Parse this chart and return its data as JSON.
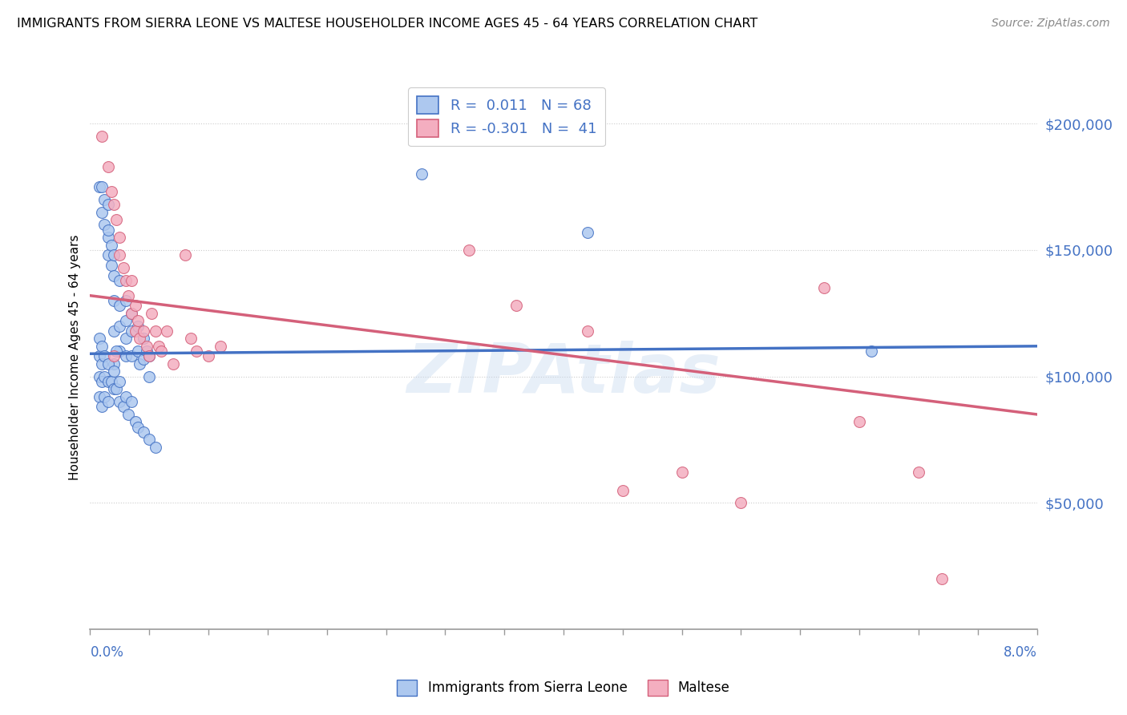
{
  "title": "IMMIGRANTS FROM SIERRA LEONE VS MALTESE HOUSEHOLDER INCOME AGES 45 - 64 YEARS CORRELATION CHART",
  "source": "Source: ZipAtlas.com",
  "ylabel": "Householder Income Ages 45 - 64 years",
  "xmin": 0.0,
  "xmax": 8.0,
  "ymin": 0,
  "ymax": 215000,
  "yticks": [
    50000,
    100000,
    150000,
    200000
  ],
  "ytick_labels": [
    "$50,000",
    "$100,000",
    "$150,000",
    "$200,000"
  ],
  "legend_entry1": "R =  0.011   N = 68",
  "legend_entry2": "R = -0.301   N =  41",
  "blue_color": "#adc8ef",
  "pink_color": "#f4aec0",
  "blue_line_color": "#4472c4",
  "pink_line_color": "#d4607a",
  "blue_line_y0": 109000,
  "blue_line_y1": 112000,
  "pink_line_y0": 132000,
  "pink_line_y1": 85000,
  "blue_scatter_x": [
    0.08,
    0.1,
    0.1,
    0.12,
    0.12,
    0.15,
    0.15,
    0.15,
    0.15,
    0.18,
    0.18,
    0.2,
    0.2,
    0.2,
    0.2,
    0.2,
    0.25,
    0.25,
    0.25,
    0.25,
    0.3,
    0.3,
    0.3,
    0.3,
    0.35,
    0.35,
    0.35,
    0.4,
    0.4,
    0.42,
    0.45,
    0.45,
    0.48,
    0.5,
    0.5,
    0.08,
    0.08,
    0.08,
    0.08,
    0.1,
    0.1,
    0.1,
    0.1,
    0.12,
    0.12,
    0.12,
    0.15,
    0.15,
    0.15,
    0.18,
    0.2,
    0.2,
    0.22,
    0.25,
    0.25,
    0.28,
    0.3,
    0.32,
    0.35,
    0.38,
    0.4,
    0.45,
    0.5,
    0.55,
    2.8,
    4.2,
    6.6,
    0.22
  ],
  "blue_scatter_y": [
    175000,
    165000,
    175000,
    160000,
    170000,
    155000,
    168000,
    158000,
    148000,
    152000,
    144000,
    140000,
    148000,
    130000,
    118000,
    105000,
    138000,
    128000,
    120000,
    110000,
    130000,
    122000,
    115000,
    108000,
    125000,
    118000,
    108000,
    120000,
    110000,
    105000,
    115000,
    107000,
    110000,
    108000,
    100000,
    115000,
    108000,
    100000,
    92000,
    112000,
    105000,
    98000,
    88000,
    108000,
    100000,
    92000,
    105000,
    98000,
    90000,
    98000,
    102000,
    95000,
    95000,
    98000,
    90000,
    88000,
    92000,
    85000,
    90000,
    82000,
    80000,
    78000,
    75000,
    72000,
    180000,
    157000,
    110000,
    110000
  ],
  "pink_scatter_x": [
    0.1,
    0.15,
    0.18,
    0.2,
    0.22,
    0.25,
    0.25,
    0.28,
    0.3,
    0.32,
    0.35,
    0.35,
    0.38,
    0.38,
    0.4,
    0.42,
    0.45,
    0.48,
    0.5,
    0.52,
    0.55,
    0.58,
    0.6,
    0.65,
    0.7,
    0.8,
    0.85,
    0.9,
    1.0,
    1.1,
    3.2,
    3.6,
    4.2,
    4.5,
    5.0,
    5.5,
    6.2,
    6.5,
    7.0,
    7.2,
    0.2
  ],
  "pink_scatter_y": [
    195000,
    183000,
    173000,
    168000,
    162000,
    155000,
    148000,
    143000,
    138000,
    132000,
    138000,
    125000,
    128000,
    118000,
    122000,
    115000,
    118000,
    112000,
    108000,
    125000,
    118000,
    112000,
    110000,
    118000,
    105000,
    148000,
    115000,
    110000,
    108000,
    112000,
    150000,
    128000,
    118000,
    55000,
    62000,
    50000,
    135000,
    82000,
    62000,
    20000,
    108000
  ],
  "watermark": "ZIPAtlas"
}
